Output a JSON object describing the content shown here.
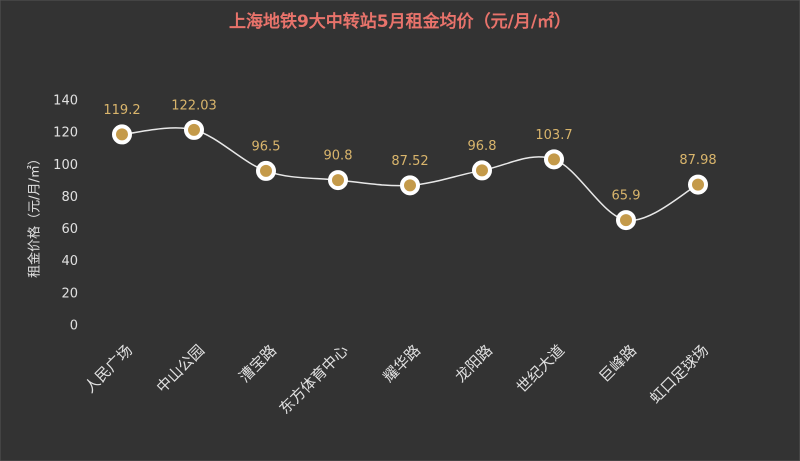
{
  "chart_data": {
    "type": "line",
    "title": "上海地铁9大中转站5月租金均价（元/月/㎡）",
    "y_label": "租金价格（元/月/㎡）",
    "categories": [
      "人民广场",
      "中山公园",
      "漕宝路",
      "东方体育中心",
      "耀华路",
      "龙阳路",
      "世纪大道",
      "巨峰路",
      "虹口足球场"
    ],
    "values": [
      119.2,
      122.03,
      96.5,
      90.8,
      87.52,
      96.8,
      103.7,
      65.9,
      87.98
    ],
    "color": "#e8e8e8",
    "marker_color": "#c49a4a",
    "label_color": "#d9b56c",
    "ylim": [
      0,
      140
    ],
    "yticks": [
      0,
      20,
      40,
      60,
      80,
      100,
      120,
      140
    ],
    "grid": false
  }
}
